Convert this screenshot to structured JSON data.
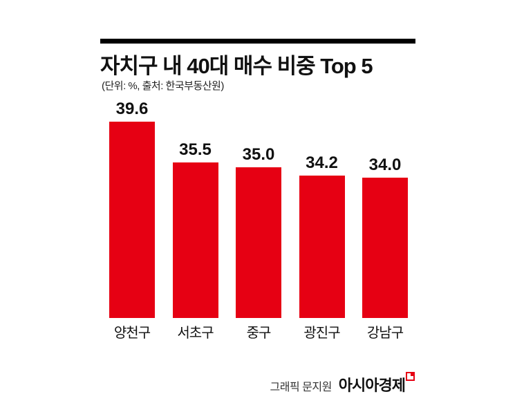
{
  "header": {
    "title": "자치구 내 40대 매수 비중 Top 5",
    "subtitle": "(단위: %, 출처: 한국부동산원)"
  },
  "chart_data": {
    "type": "bar",
    "title": "자치구 내 40대 매수 비중 Top 5",
    "unit_note": "(단위: %, 출처: 한국부동산원)",
    "categories": [
      "양천구",
      "서초구",
      "중구",
      "광진구",
      "강남구"
    ],
    "values": [
      39.6,
      35.5,
      35.0,
      34.2,
      34.0
    ],
    "xlabel": "",
    "ylabel": "",
    "ylim": [
      20,
      40
    ],
    "bar_color": "#e60013",
    "grid": false,
    "legend": false,
    "value_labels": [
      "39.6",
      "35.5",
      "35.0",
      "34.2",
      "34.0"
    ]
  },
  "footer": {
    "credit": "그래픽 문지원",
    "brand": "아시아경제"
  },
  "colors": {
    "bar": "#e60013",
    "accent": "#e60013",
    "text": "#111111",
    "rule": "#000000",
    "background": "#ffffff"
  }
}
